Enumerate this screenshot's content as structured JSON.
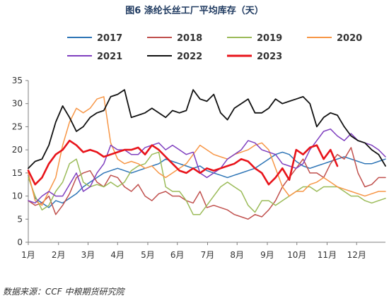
{
  "chart_data": {
    "type": "line",
    "title": "图6 涤纶长丝工厂平均库存（天）",
    "xlabel": "",
    "ylabel": "",
    "x_unit": "week",
    "x_range": [
      1,
      53
    ],
    "ylim": [
      0,
      35
    ],
    "yticks": [
      0,
      5,
      10,
      15,
      20,
      25,
      30,
      35
    ],
    "grid": false,
    "legend_position": "top",
    "months": [
      {
        "label": "1月",
        "x": 1
      },
      {
        "label": "2月",
        "x": 5.4
      },
      {
        "label": "3月",
        "x": 9.7
      },
      {
        "label": "4月",
        "x": 14
      },
      {
        "label": "5月",
        "x": 18.4
      },
      {
        "label": "6月",
        "x": 22.7
      },
      {
        "label": "7月",
        "x": 27.1
      },
      {
        "label": "8月",
        "x": 31.4
      },
      {
        "label": "9月",
        "x": 35.8
      },
      {
        "label": "10月",
        "x": 40.1
      },
      {
        "label": "11月",
        "x": 44.5
      },
      {
        "label": "12月",
        "x": 48.8
      }
    ],
    "series": [
      {
        "name": "2017",
        "color": "#2e75b6",
        "width": 1.5,
        "x": [
          1,
          2,
          3,
          4,
          5,
          6,
          7,
          8,
          9,
          10,
          11,
          12,
          13,
          14,
          15,
          16,
          17,
          18,
          19,
          20,
          21,
          22,
          23,
          24,
          25,
          26,
          27,
          28,
          29,
          30,
          31,
          32,
          33,
          34,
          35,
          36,
          37,
          38,
          39,
          40,
          41,
          42,
          43,
          44,
          45,
          46,
          47,
          48,
          49,
          50,
          51,
          52,
          53
        ],
        "values": [
          14.5,
          9.5,
          8.5,
          7.5,
          9,
          8.5,
          9.5,
          10.5,
          12,
          13,
          14,
          15,
          15.5,
          16,
          15.5,
          15,
          15.5,
          16,
          16.5,
          17,
          18,
          17.5,
          17,
          16.5,
          16,
          16.5,
          15.5,
          15,
          14.5,
          14,
          14.5,
          15,
          15.5,
          16,
          17,
          18,
          19,
          19.5,
          19,
          17.5,
          16.5,
          16,
          16.5,
          17,
          17.5,
          18,
          18.5,
          18,
          17.5,
          17,
          17,
          17.5,
          18
        ]
      },
      {
        "name": "2018",
        "color": "#c0504d",
        "width": 1.5,
        "x": [
          1,
          2,
          3,
          4,
          5,
          6,
          7,
          8,
          9,
          10,
          11,
          12,
          13,
          14,
          15,
          16,
          17,
          18,
          19,
          20,
          21,
          22,
          23,
          24,
          25,
          26,
          27,
          28,
          29,
          30,
          31,
          32,
          33,
          34,
          35,
          36,
          37,
          38,
          39,
          40,
          41,
          42,
          43,
          44,
          45,
          46,
          47,
          48,
          49,
          50,
          51,
          52,
          53
        ],
        "values": [
          9,
          8,
          8.5,
          10,
          6,
          8,
          10.5,
          14,
          15,
          15.5,
          13,
          12,
          14.5,
          14,
          12,
          11,
          12.5,
          10,
          9,
          10.5,
          11,
          10,
          10,
          9,
          8.5,
          11,
          7.5,
          8,
          7.5,
          7,
          6,
          5.5,
          5,
          6,
          5.5,
          7,
          9,
          12,
          14,
          16,
          18,
          15,
          15,
          14,
          17,
          19,
          18,
          20.5,
          15,
          12,
          12.5,
          14,
          14
        ]
      },
      {
        "name": "2019",
        "color": "#9bbb59",
        "width": 1.5,
        "x": [
          1,
          2,
          3,
          4,
          5,
          6,
          7,
          8,
          9,
          10,
          11,
          12,
          13,
          14,
          15,
          16,
          17,
          18,
          19,
          20,
          21,
          22,
          23,
          24,
          25,
          26,
          27,
          28,
          29,
          30,
          31,
          32,
          33,
          34,
          35,
          36,
          37,
          38,
          39,
          40,
          41,
          42,
          43,
          44,
          45,
          46,
          47,
          48,
          49,
          50,
          51,
          52,
          53
        ],
        "values": [
          14,
          10,
          7,
          8,
          11,
          13,
          17,
          18,
          13,
          12,
          12.5,
          12,
          13,
          12,
          13,
          15.5,
          16.5,
          17,
          19,
          19.5,
          12,
          11,
          11,
          9,
          6,
          6,
          8,
          10,
          12,
          13,
          12,
          11,
          8,
          6.5,
          9,
          9,
          8,
          9,
          10,
          11,
          12,
          12,
          11,
          12,
          12,
          12,
          11,
          10,
          10,
          9,
          8.5,
          9,
          9.5
        ]
      },
      {
        "name": "2020",
        "color": "#f79646",
        "width": 1.5,
        "x": [
          1,
          2,
          3,
          4,
          5,
          6,
          7,
          8,
          9,
          10,
          11,
          12,
          13,
          14,
          15,
          16,
          17,
          18,
          19,
          20,
          21,
          22,
          23,
          24,
          25,
          26,
          27,
          28,
          29,
          30,
          31,
          32,
          33,
          34,
          35,
          36,
          37,
          38,
          39,
          40,
          41,
          42,
          43,
          44,
          45,
          46,
          47,
          48,
          49,
          50,
          51,
          52,
          53
        ],
        "values": [
          15,
          9,
          8,
          11,
          14,
          21,
          26,
          29,
          28,
          29,
          31,
          31.5,
          21.5,
          18,
          17,
          17.5,
          17,
          16,
          16.5,
          15,
          14,
          15,
          16,
          17,
          19,
          21,
          20,
          19,
          18.5,
          18,
          19,
          19.5,
          20,
          21,
          21.5,
          20,
          16,
          12,
          10,
          11,
          11,
          12.5,
          13,
          14,
          13,
          12,
          11.5,
          11,
          10.5,
          10,
          10.5,
          11,
          11
        ]
      },
      {
        "name": "2021",
        "color": "#7f3fbf",
        "width": 1.5,
        "x": [
          1,
          2,
          3,
          4,
          5,
          6,
          7,
          8,
          9,
          10,
          11,
          12,
          13,
          14,
          15,
          16,
          17,
          18,
          19,
          20,
          21,
          22,
          23,
          24,
          25,
          26,
          27,
          28,
          29,
          30,
          31,
          32,
          33,
          34,
          35,
          36,
          37,
          38,
          39,
          40,
          41,
          42,
          43,
          44,
          45,
          46,
          47,
          48,
          49,
          50,
          51,
          52,
          53
        ],
        "values": [
          9,
          8.5,
          10,
          11,
          10,
          10,
          12.5,
          15,
          11,
          12,
          15,
          17,
          21,
          20,
          20,
          19,
          19,
          20.5,
          21,
          21.5,
          20,
          21,
          20,
          19,
          19.5,
          15,
          14,
          15,
          16,
          18,
          19,
          20,
          22,
          21.5,
          20,
          19.5,
          19,
          17,
          16.5,
          16,
          17,
          20,
          22,
          24,
          24.5,
          23,
          22,
          23.5,
          22,
          21.5,
          21,
          20,
          18.5
        ]
      },
      {
        "name": "2022",
        "color": "#111111",
        "width": 1.8,
        "x": [
          1,
          2,
          3,
          4,
          5,
          6,
          7,
          8,
          9,
          10,
          11,
          12,
          13,
          14,
          15,
          16,
          17,
          18,
          19,
          20,
          21,
          22,
          23,
          24,
          25,
          26,
          27,
          28,
          29,
          30,
          31,
          32,
          33,
          34,
          35,
          36,
          37,
          38,
          39,
          40,
          41,
          42,
          43,
          44,
          45,
          46,
          47,
          48,
          49,
          50,
          51,
          52,
          53
        ],
        "values": [
          16,
          17.5,
          18,
          21,
          26,
          29.5,
          27,
          24,
          25,
          27,
          28,
          28.5,
          31.5,
          32,
          33,
          27,
          27.5,
          28,
          29,
          28,
          27,
          28.5,
          28,
          28.5,
          33,
          31,
          30.5,
          32,
          28,
          26.5,
          29,
          30,
          31,
          28,
          28,
          29,
          31,
          30,
          30.5,
          31,
          31.5,
          30,
          25,
          27,
          28,
          27.5,
          25,
          23,
          22,
          21.5,
          20,
          19,
          16.5
        ]
      },
      {
        "name": "2023",
        "color": "#e8141b",
        "width": 2.6,
        "x": [
          1,
          2,
          3,
          4,
          5,
          6,
          7,
          8,
          9,
          10,
          11,
          12,
          13,
          14,
          15,
          16,
          17,
          18,
          19,
          20,
          21,
          22,
          23,
          24,
          25,
          26,
          27,
          28,
          29,
          30,
          31,
          32,
          33,
          34,
          35,
          36,
          37,
          38,
          39,
          40,
          41,
          42,
          43,
          44,
          45,
          46
        ],
        "values": [
          15.5,
          12.5,
          14,
          17,
          19,
          20,
          22,
          21,
          19.5,
          20,
          19.5,
          18.5,
          19,
          19.5,
          20,
          20,
          20.5,
          19,
          21,
          20,
          18.5,
          17,
          15.5,
          15,
          16,
          15,
          16,
          15.5,
          16,
          16.5,
          17,
          18,
          17.5,
          16,
          15,
          12.5,
          14,
          16,
          13.5,
          20,
          19,
          20.5,
          21,
          18,
          20,
          16.5
        ]
      }
    ],
    "legend": [
      {
        "label": "2017",
        "color": "#2e75b6"
      },
      {
        "label": "2018",
        "color": "#c0504d"
      },
      {
        "label": "2019",
        "color": "#9bbb59"
      },
      {
        "label": "2020",
        "color": "#f79646"
      },
      {
        "label": "2021",
        "color": "#7f3fbf"
      },
      {
        "label": "2022",
        "color": "#111111"
      },
      {
        "label": "2023",
        "color": "#e8141b"
      }
    ]
  },
  "source_note": "数据来源：CCF  中粮期货研究院"
}
